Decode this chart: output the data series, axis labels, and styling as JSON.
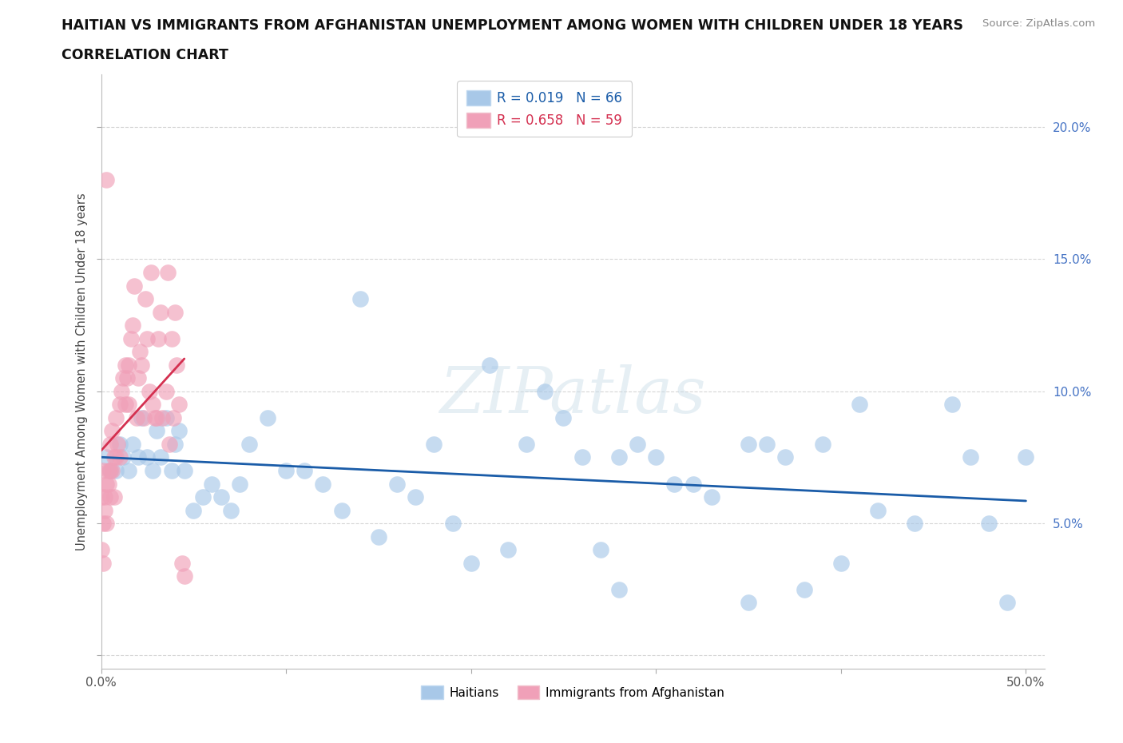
{
  "title_line1": "HAITIAN VS IMMIGRANTS FROM AFGHANISTAN UNEMPLOYMENT AMONG WOMEN WITH CHILDREN UNDER 18 YEARS",
  "title_line2": "CORRELATION CHART",
  "source": "Source: ZipAtlas.com",
  "xlabel_ticks": [
    0.0,
    10.0,
    20.0,
    30.0,
    40.0,
    50.0
  ],
  "xlabel_labels": [
    "0.0%",
    "",
    "",
    "",
    "",
    "50.0%"
  ],
  "ylabel": "Unemployment Among Women with Children Under 18 years",
  "ylabel_ticks": [
    0.0,
    5.0,
    10.0,
    15.0,
    20.0
  ],
  "ylabel_labels": [
    "",
    "5.0%",
    "10.0%",
    "15.0%",
    "20.0%"
  ],
  "xlim": [
    0.0,
    52.0
  ],
  "ylim": [
    -0.5,
    22.0
  ],
  "haitians_R": 0.019,
  "haitians_N": 66,
  "afghanistan_R": 0.658,
  "afghanistan_N": 59,
  "haitians_color": "#a8c8e8",
  "afghanistan_color": "#f0a0b8",
  "haitians_line_color": "#1a5ca8",
  "afghanistan_line_color": "#d43050",
  "legend_color_haiti": "#a8c8e8",
  "legend_color_afghan": "#f0a0b8",
  "watermark": "ZIPatlas",
  "watermark_color": "#ccdded",
  "haitians_x": [
    0.3,
    0.5,
    0.8,
    1.0,
    1.2,
    1.5,
    1.7,
    2.0,
    2.2,
    2.5,
    2.8,
    3.0,
    3.2,
    3.5,
    3.8,
    4.0,
    4.2,
    4.5,
    5.0,
    5.5,
    6.0,
    6.5,
    7.0,
    7.5,
    8.0,
    9.0,
    10.0,
    11.0,
    12.0,
    13.0,
    14.0,
    15.0,
    16.0,
    17.0,
    18.0,
    19.0,
    20.0,
    21.0,
    22.0,
    23.0,
    24.0,
    25.0,
    26.0,
    27.0,
    28.0,
    29.0,
    30.0,
    31.0,
    32.0,
    33.0,
    35.0,
    36.0,
    37.0,
    38.0,
    39.0,
    40.0,
    41.0,
    42.0,
    44.0,
    46.0,
    47.0,
    48.0,
    49.0,
    50.0,
    35.0,
    28.0
  ],
  "haitians_y": [
    7.5,
    7.0,
    7.0,
    8.0,
    7.5,
    7.0,
    8.0,
    7.5,
    9.0,
    7.5,
    7.0,
    8.5,
    7.5,
    9.0,
    7.0,
    8.0,
    8.5,
    7.0,
    5.5,
    6.0,
    6.5,
    6.0,
    5.5,
    6.5,
    8.0,
    9.0,
    7.0,
    7.0,
    6.5,
    5.5,
    13.5,
    4.5,
    6.5,
    6.0,
    8.0,
    5.0,
    3.5,
    11.0,
    4.0,
    8.0,
    10.0,
    9.0,
    7.5,
    4.0,
    7.5,
    8.0,
    7.5,
    6.5,
    6.5,
    6.0,
    8.0,
    8.0,
    7.5,
    2.5,
    8.0,
    3.5,
    9.5,
    5.5,
    5.0,
    9.5,
    7.5,
    5.0,
    2.0,
    7.5,
    2.0,
    2.5
  ],
  "afghanistan_x": [
    0.0,
    0.0,
    0.1,
    0.1,
    0.1,
    0.2,
    0.2,
    0.3,
    0.3,
    0.4,
    0.4,
    0.5,
    0.5,
    0.5,
    0.6,
    0.6,
    0.7,
    0.7,
    0.8,
    0.8,
    0.9,
    1.0,
    1.0,
    1.1,
    1.2,
    1.3,
    1.3,
    1.4,
    1.5,
    1.5,
    1.6,
    1.7,
    1.8,
    1.9,
    2.0,
    2.1,
    2.2,
    2.3,
    2.4,
    2.5,
    2.6,
    2.7,
    2.8,
    2.9,
    3.0,
    3.1,
    3.2,
    3.3,
    3.5,
    3.6,
    3.7,
    3.8,
    3.9,
    4.0,
    4.1,
    4.2,
    4.4,
    4.5,
    0.3
  ],
  "afghanistan_y": [
    6.0,
    4.0,
    5.0,
    7.0,
    3.5,
    6.0,
    5.5,
    5.0,
    6.5,
    7.0,
    6.5,
    7.0,
    8.0,
    6.0,
    7.0,
    8.5,
    7.5,
    6.0,
    7.5,
    9.0,
    8.0,
    9.5,
    7.5,
    10.0,
    10.5,
    9.5,
    11.0,
    10.5,
    11.0,
    9.5,
    12.0,
    12.5,
    14.0,
    9.0,
    10.5,
    11.5,
    11.0,
    9.0,
    13.5,
    12.0,
    10.0,
    14.5,
    9.5,
    9.0,
    9.0,
    12.0,
    13.0,
    9.0,
    10.0,
    14.5,
    8.0,
    12.0,
    9.0,
    13.0,
    11.0,
    9.5,
    3.5,
    3.0,
    18.0
  ]
}
